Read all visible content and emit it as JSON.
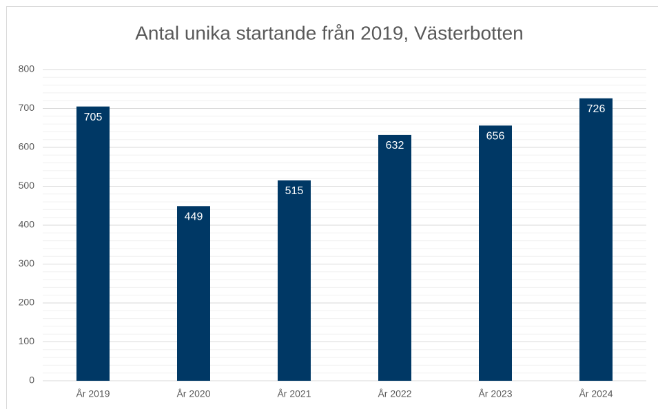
{
  "chart_data": {
    "type": "bar",
    "title": "Antal unika startande från 2019, Västerbotten",
    "categories": [
      "År 2019",
      "År 2020",
      "År 2021",
      "År 2022",
      "År 2023",
      "År 2024"
    ],
    "values": [
      705,
      449,
      515,
      632,
      656,
      726
    ],
    "color": "#003865",
    "ylim": [
      0,
      800
    ],
    "yticks": [
      0,
      100,
      200,
      300,
      400,
      500,
      600,
      700,
      800
    ],
    "grid": true,
    "minor_grid": true
  }
}
